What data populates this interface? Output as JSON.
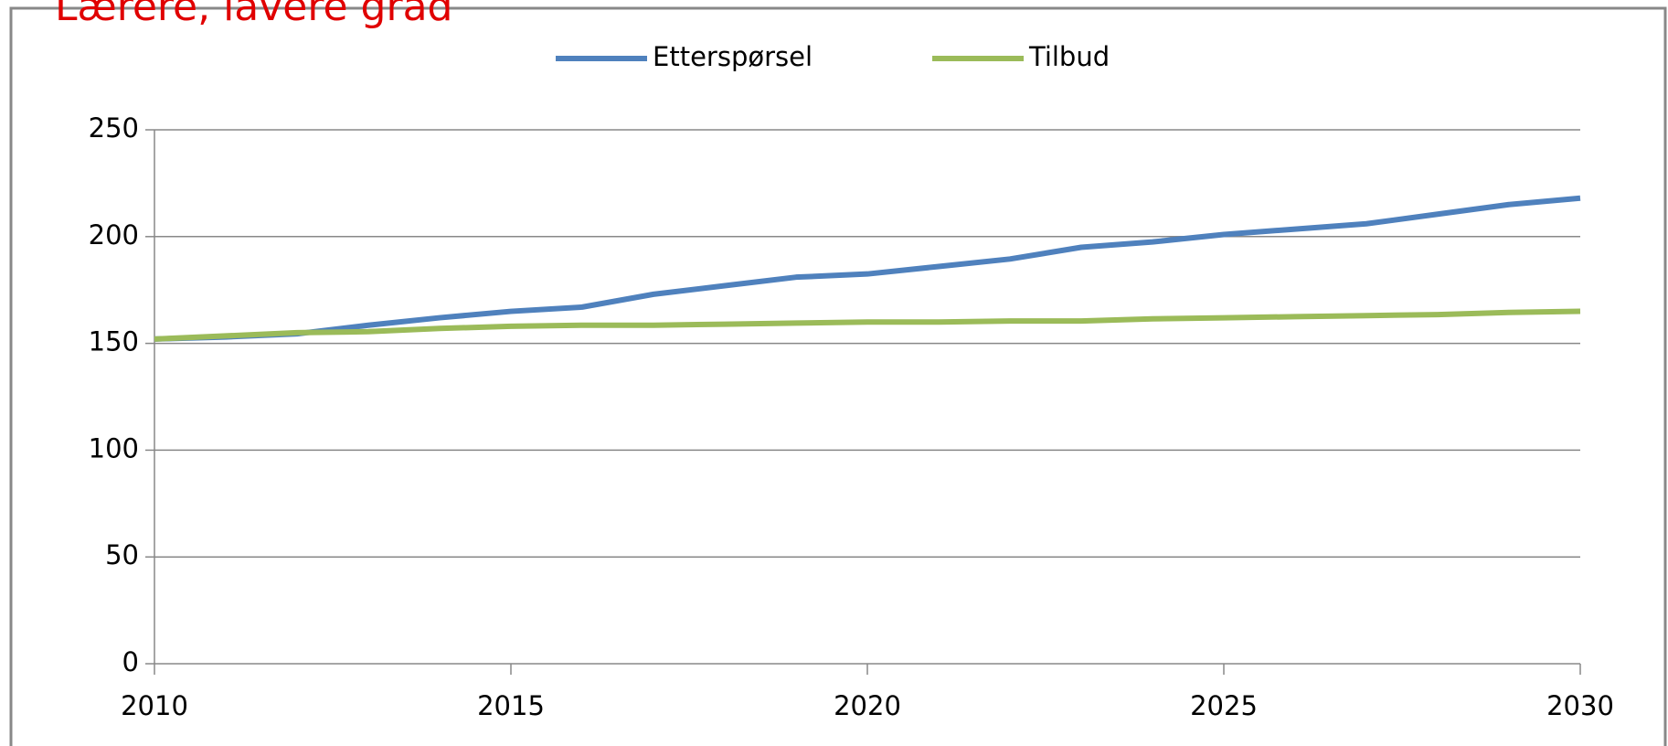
{
  "chart_data": {
    "type": "line",
    "title": "Lærere, lavere grad",
    "x": [
      2010,
      2011,
      2012,
      2013,
      2014,
      2015,
      2016,
      2017,
      2018,
      2019,
      2020,
      2021,
      2022,
      2023,
      2024,
      2025,
      2026,
      2027,
      2028,
      2029,
      2030
    ],
    "series": [
      {
        "name": "Etterspørsel",
        "color": "#4f81bd",
        "values": [
          152,
          153,
          154.5,
          158.5,
          162,
          165,
          167,
          173,
          177,
          181,
          182.5,
          186,
          189.5,
          195,
          197.5,
          201,
          203.5,
          206,
          210.5,
          215,
          218
        ]
      },
      {
        "name": "Tilbud",
        "color": "#9bbb59",
        "values": [
          152,
          153.5,
          155,
          155.5,
          157,
          158,
          158.5,
          158.5,
          159,
          159.5,
          160,
          160,
          160.5,
          160.5,
          161.5,
          162,
          162.5,
          163,
          163.5,
          164.5,
          165
        ]
      }
    ],
    "xlim": [
      2010,
      2030
    ],
    "xticks": [
      2010,
      2015,
      2020,
      2025,
      2030
    ],
    "ylim": [
      0,
      250
    ],
    "yticks": [
      0,
      50,
      100,
      150,
      200,
      250
    ],
    "grid": true,
    "legend": "top"
  }
}
